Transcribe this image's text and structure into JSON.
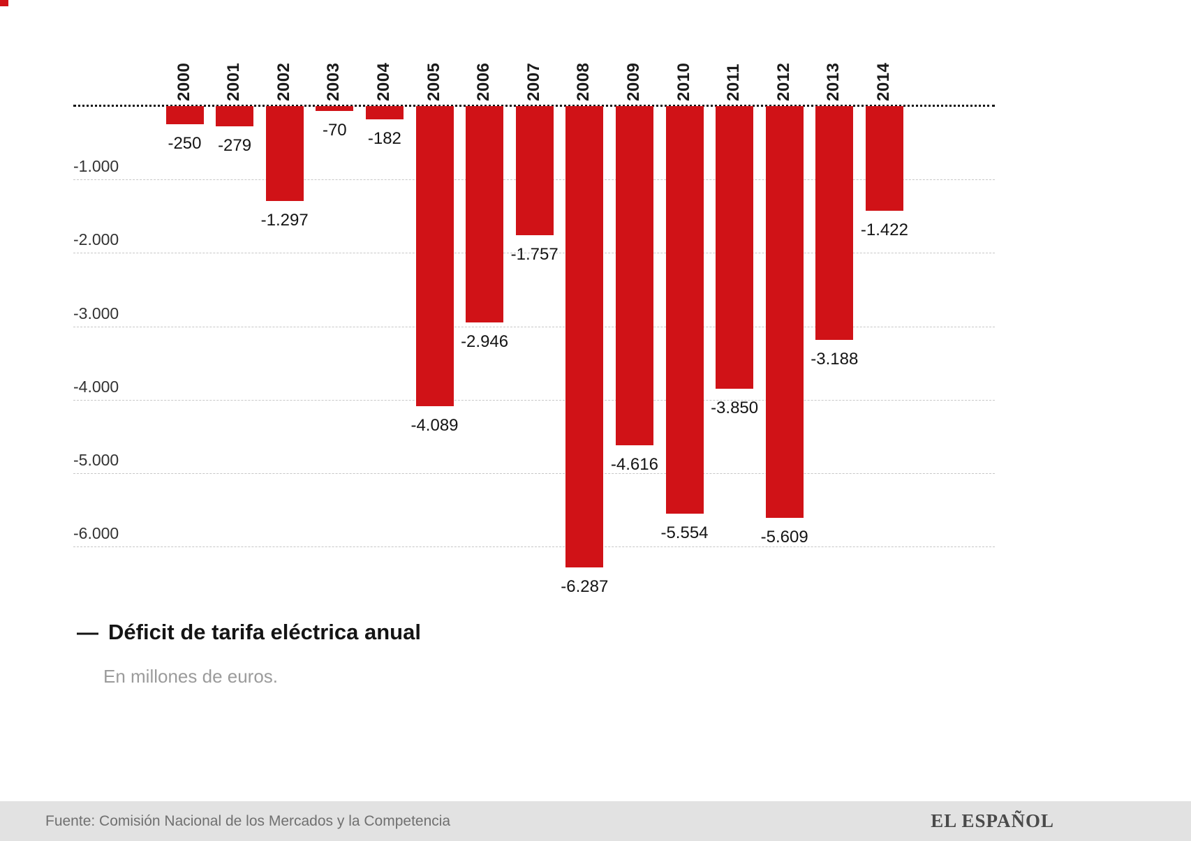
{
  "chart_data": {
    "type": "bar",
    "title": "Déficit de tarifa eléctrica anual",
    "subtitle": "En millones de euros.",
    "categories": [
      "2000",
      "2001",
      "2002",
      "2003",
      "2004",
      "2005",
      "2006",
      "2007",
      "2008",
      "2009",
      "2010",
      "2011",
      "2012",
      "2013",
      "2014"
    ],
    "values": [
      -250,
      -279,
      -1297,
      -70,
      -182,
      -4089,
      -2946,
      -1757,
      -6287,
      -4616,
      -5554,
      -3850,
      -5609,
      -3188,
      -1422
    ],
    "value_labels": [
      "-250",
      "-279",
      "-1.297",
      "-70",
      "-182",
      "-4.089",
      "-2.946",
      "-1.757",
      "-6.287",
      "-4.616",
      "-5.554",
      "-3.850",
      "-5.609",
      "-3.188",
      "-1.422"
    ],
    "yticks": [
      -1000,
      -2000,
      -3000,
      -4000,
      -5000,
      -6000
    ],
    "ytick_labels": [
      "-1.000",
      "-2.000",
      "-3.000",
      "-4.000",
      "-5.000",
      "-6.000"
    ],
    "ylim": [
      -6500,
      0
    ],
    "bar_color": "#d01217",
    "gridline_color": "#c7c7c7",
    "zero_line_color": "#141414",
    "grid": true,
    "legend_position": "bottom-left"
  },
  "legend": {
    "marker": "—"
  },
  "footer": {
    "source": "Fuente: Comisión Nacional de los Mercados y la Competencia",
    "brand": "EL ESPAÑOL"
  }
}
